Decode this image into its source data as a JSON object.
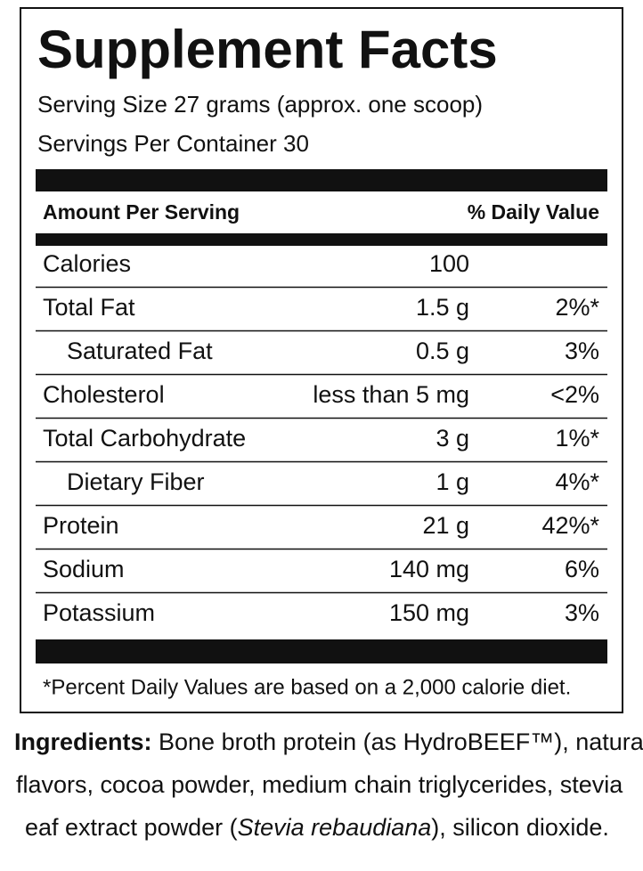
{
  "label": {
    "title": "Supplement Facts",
    "serving_size": "Serving Size 27 grams (approx. one scoop)",
    "servings_per_container": "Servings Per Container 30",
    "header": {
      "amount": "Amount Per Serving",
      "daily_value": "% Daily Value"
    },
    "rows": [
      {
        "name": "Calories",
        "amount": "100",
        "dv": null
      },
      {
        "name": "Total Fat",
        "amount": "1.5 g",
        "dv": "2%*"
      },
      {
        "name": "Saturated Fat",
        "amount": "0.5 g",
        "dv": "3%",
        "indent": true
      },
      {
        "name": "Cholesterol",
        "amount": "less than 5 mg",
        "dv": "<2%"
      },
      {
        "name": "Total Carbohydrate",
        "amount": "3 g",
        "dv": "1%*"
      },
      {
        "name": "Dietary Fiber",
        "amount": "1 g",
        "dv": "4%*",
        "indent": true
      },
      {
        "name": "Protein",
        "amount": "21 g",
        "dv": "42%*"
      },
      {
        "name": "Sodium",
        "amount": "140 mg",
        "dv": "6%"
      },
      {
        "name": "Potassium",
        "amount": "150 mg",
        "dv": "3%"
      }
    ],
    "footnote": "*Percent Daily Values are based on a 2,000 calorie diet."
  },
  "ingredients": {
    "label": "Ingredients:",
    "lines": [
      [
        {
          "text": " Bone broth protein (as HydroBEEF™), natural"
        }
      ],
      [
        {
          "text": "flavors, cocoa powder, medium chain triglycerides, stevia"
        }
      ],
      [
        {
          "text": "eaf extract powder ("
        },
        {
          "text": "Stevia rebaudiana",
          "italic": true
        },
        {
          "text": "), silicon dioxide."
        }
      ]
    ]
  }
}
